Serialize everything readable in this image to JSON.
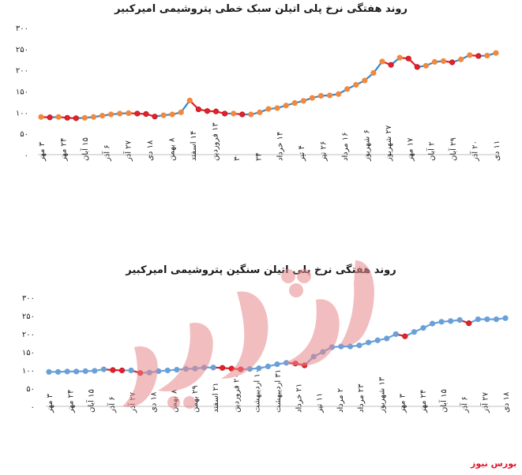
{
  "charts": [
    {
      "title": "روند هفتگی نرخ پلی اتیلن سبک خطی پتروشیمی امیرکبیر",
      "chart_data": {
        "type": "line",
        "title": "روند هفتگی نرخ پلی اتیلن سبک خطی پتروشیمی امیرکبیر",
        "ylim": [
          0,
          300
        ],
        "yticks": [
          "۰",
          "۵۰",
          "۱۰۰",
          "۱۵۰",
          "۲۰۰",
          "۲۵۰",
          "۳۰۰"
        ],
        "x_labels": [
          "۳ مهر",
          "۲۴ مهر",
          "۱۵ آبان",
          "۶ آذر",
          "۲۷ آذر",
          "۱۸ دی",
          "۸ بهمن",
          "۱۴ اسفند",
          "۱۳ فروردین",
          "۳",
          "۲۴",
          "۱۴ خرداد",
          "۴ تیر",
          "۲۶ تیر",
          "۱۶ مرداد",
          "۶ شهریور",
          "۲۷ شهریور",
          "۱۷ مهر",
          "۲ آبان",
          "۲۹ آبان",
          "۲۰ آذر",
          "۱۱ دی"
        ],
        "values": [
          89,
          88,
          89,
          87,
          86,
          87,
          89,
          92,
          95,
          97,
          98,
          97,
          96,
          90,
          93,
          95,
          100,
          128,
          107,
          103,
          102,
          97,
          97,
          95,
          95,
          100,
          108,
          110,
          116,
          122,
          127,
          134,
          139,
          140,
          143,
          155,
          165,
          175,
          193,
          220,
          212,
          229,
          227,
          207,
          210,
          219,
          221,
          218,
          225,
          235,
          233,
          234,
          240
        ],
        "colors": {
          "line": "#3b87c8",
          "marker": "#f2883d",
          "marker_down": "#e5202a"
        }
      }
    },
    {
      "title": "روند هفتگی نرخ پلی اتیلن سنگین پتروشیمی امیرکبیر",
      "chart_data": {
        "type": "line",
        "title": "روند هفتگی نرخ پلی اتیلن سنگین پتروشیمی امیرکبیر",
        "ylim": [
          0,
          300
        ],
        "yticks": [
          "۰",
          "۵۰",
          "۱۰۰",
          "۱۵۰",
          "۲۰۰",
          "۲۵۰",
          "۳۰۰"
        ],
        "x_labels": [
          "۳ مهر",
          "۲۴ مهر",
          "۱۵ آبان",
          "۶ آذر",
          "۲۷ آذر",
          "۱۸ دی",
          "۸ بهمن",
          "۲۹ بهمن",
          "۲۱ اسفند",
          "۲۰ فروردین",
          "۱۰ اردیبهشت",
          "۳۱ اردیبهشت",
          "۲۱ خرداد",
          "۱۱ تیر",
          "۲ مرداد",
          "۲۳ مرداد",
          "۱۳ شهریور",
          "۳ مهر",
          "۲۴ مهر",
          "۱۵ آبان",
          "۶ آذر",
          "۲۷ آذر",
          "۱۸ دی"
        ],
        "values": [
          95,
          95,
          96,
          96,
          97,
          98,
          102,
          100,
          99,
          99,
          92,
          93,
          97,
          99,
          101,
          103,
          104,
          107,
          107,
          106,
          104,
          102,
          103,
          105,
          110,
          116,
          120,
          118,
          113,
          137,
          150,
          163,
          165,
          165,
          168,
          176,
          182,
          187,
          199,
          193,
          205,
          216,
          228,
          233,
          235,
          238,
          229,
          240,
          240,
          240,
          243
        ],
        "colors": {
          "line": "#6aa0d8",
          "marker": "#6aa0d8",
          "marker_down": "#e5202a"
        }
      }
    }
  ],
  "source": "بورس نیوز",
  "watermark_text": "بورس نیوز"
}
